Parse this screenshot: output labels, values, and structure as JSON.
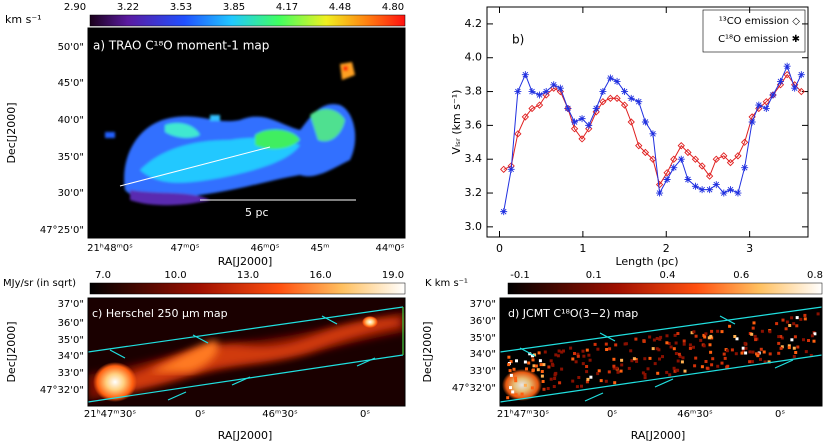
{
  "chart_data": [
    {
      "type": "line",
      "label": "b)",
      "xlabel": "Length (pc)",
      "ylabel": "Vₗₛᵣ (km s⁻¹)",
      "x": [
        0.05,
        0.14,
        0.22,
        0.31,
        0.39,
        0.48,
        0.56,
        0.65,
        0.73,
        0.82,
        0.9,
        0.99,
        1.07,
        1.16,
        1.24,
        1.33,
        1.41,
        1.5,
        1.58,
        1.67,
        1.75,
        1.84,
        1.92,
        2.01,
        2.09,
        2.18,
        2.26,
        2.35,
        2.43,
        2.52,
        2.6,
        2.69,
        2.77,
        2.86,
        2.94,
        3.03,
        3.11,
        3.2,
        3.28,
        3.37,
        3.45,
        3.54,
        3.62
      ],
      "series": [
        {
          "name": "¹³CO emission ◇",
          "color": "#e02020",
          "marker": "diamond",
          "values": [
            3.34,
            3.36,
            3.55,
            3.65,
            3.7,
            3.72,
            3.78,
            3.82,
            3.8,
            3.7,
            3.58,
            3.52,
            3.58,
            3.68,
            3.74,
            3.76,
            3.76,
            3.72,
            3.62,
            3.48,
            3.44,
            3.4,
            3.25,
            3.32,
            3.4,
            3.48,
            3.44,
            3.4,
            3.36,
            3.3,
            3.4,
            3.42,
            3.38,
            3.42,
            3.5,
            3.65,
            3.7,
            3.74,
            3.78,
            3.84,
            3.9,
            3.84,
            3.8
          ]
        },
        {
          "name": "C¹⁸O emission ✱",
          "color": "#2030e0",
          "marker": "asterisk",
          "values": [
            3.09,
            3.34,
            3.8,
            3.9,
            3.8,
            3.78,
            3.8,
            3.84,
            3.82,
            3.7,
            3.62,
            3.64,
            3.6,
            3.7,
            3.8,
            3.88,
            3.86,
            3.8,
            3.76,
            3.74,
            3.62,
            3.55,
            3.2,
            3.28,
            3.35,
            3.4,
            3.28,
            3.24,
            3.22,
            3.22,
            3.25,
            3.2,
            3.22,
            3.2,
            3.35,
            3.62,
            3.72,
            3.7,
            3.78,
            3.86,
            3.95,
            3.82,
            3.9
          ]
        }
      ],
      "xlim": [
        -0.15,
        3.7
      ],
      "ylim": [
        2.94,
        4.3
      ],
      "xticks": [
        0,
        1,
        2,
        3
      ],
      "yticks": [
        {
          "value": 3,
          "label": "3.0"
        },
        3.2,
        3.4,
        3.6,
        3.8,
        {
          "value": 4,
          "label": "4.0"
        },
        4.2
      ],
      "legend": "upper right"
    }
  ],
  "panels": {
    "a": {
      "title": "a) TRAO C¹⁸O moment-1 map",
      "colorbar_unit": "km s⁻¹",
      "colorbar_ticks": [
        "2.90",
        "3.22",
        "3.53",
        "3.85",
        "4.17",
        "4.48",
        "4.80"
      ],
      "yticks": [
        "50'0\"",
        "45'0\"",
        "40'0\"",
        "35'0\"",
        "30'0\"",
        "47°25'0\""
      ],
      "xticks": [
        "21ʰ48ᵐ0ˢ",
        "47ᵐ0ˢ",
        "46ᵐ0ˢ",
        "45ᵐ",
        "44ᵐ0ˢ"
      ],
      "xlabel": "RA[J2000]",
      "ylabel": "Dec[J2000]",
      "scale_label": "5 pc"
    },
    "c": {
      "title": "c) Herschel 250 μm map",
      "colorbar_unit": "MJy/sr (in sqrt)",
      "colorbar_ticks": [
        "7.0",
        "10.0",
        "13.0",
        "16.0",
        "19.0"
      ],
      "yticks": [
        "37'0\"",
        "36'0\"",
        "35'0\"",
        "34'0\"",
        "33'0\"",
        "47°32'0\""
      ],
      "xticks": [
        "21ʰ47ᵐ30ˢ",
        "0ˢ",
        "46ᵐ30ˢ",
        "0ˢ"
      ],
      "xlabel": "RA[J2000]",
      "ylabel": "Dec[J2000]"
    },
    "d": {
      "title": "d) JCMT C¹⁸O(3−2) map",
      "colorbar_unit": "K km s⁻¹",
      "colorbar_ticks": [
        "-0.1",
        "0.1",
        "0.4",
        "0.6",
        "0.8"
      ],
      "yticks": [
        "37'0\"",
        "36'0\"",
        "35'0\"",
        "34'0\"",
        "33'0\"",
        "47°32'0\""
      ],
      "xticks": [
        "21ʰ47ᵐ30ˢ",
        "0ˢ",
        "46ᵐ30ˢ",
        "0ˢ"
      ],
      "xlabel": "RA[J2000]",
      "ylabel": "Dec[J2000]"
    }
  }
}
